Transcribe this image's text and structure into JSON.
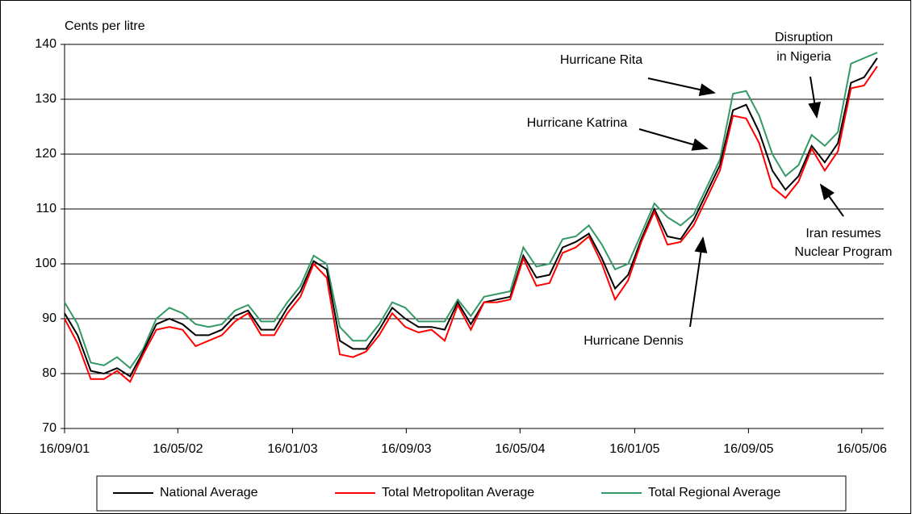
{
  "chart_data": {
    "type": "line",
    "y_label": "Cents per litre",
    "x": [
      "16/09/01",
      "14/10/01",
      "11/11/01",
      "09/12/01",
      "06/01/02",
      "03/02/02",
      "03/03/02",
      "31/03/02",
      "28/04/02",
      "26/05/02",
      "23/06/02",
      "21/07/02",
      "18/08/02",
      "15/09/02",
      "13/10/02",
      "10/11/02",
      "08/12/02",
      "05/01/03",
      "02/02/03",
      "02/03/03",
      "30/03/03",
      "27/04/03",
      "25/05/03",
      "22/06/03",
      "20/07/03",
      "17/08/03",
      "14/09/03",
      "12/10/03",
      "09/11/03",
      "07/12/03",
      "04/01/04",
      "01/02/04",
      "29/02/04",
      "28/03/04",
      "25/04/04",
      "23/05/04",
      "20/06/04",
      "18/07/04",
      "15/08/04",
      "12/09/04",
      "10/10/04",
      "07/11/04",
      "05/12/04",
      "02/01/05",
      "30/01/05",
      "27/02/05",
      "27/03/05",
      "24/04/05",
      "22/05/05",
      "19/06/05",
      "17/07/05",
      "14/08/05",
      "11/09/05",
      "09/10/05",
      "06/11/05",
      "04/12/05",
      "01/01/06",
      "29/01/06",
      "26/02/06",
      "26/03/06",
      "23/04/06",
      "21/05/06",
      "18/06/06"
    ],
    "series": [
      {
        "name": "National Average",
        "color": "#000000",
        "values": [
          91,
          87,
          80.5,
          80,
          81,
          79.5,
          84,
          89,
          90,
          89,
          87,
          87,
          88,
          90.5,
          91.5,
          88,
          88,
          92,
          95,
          100.5,
          99,
          86,
          84.5,
          84.5,
          88,
          92,
          90,
          88.5,
          88.5,
          88,
          93,
          89,
          93,
          93.5,
          94,
          101.5,
          97.5,
          98,
          103,
          104,
          105.5,
          101,
          95.5,
          98,
          104.5,
          110,
          105,
          104.5,
          108,
          113,
          118,
          128,
          129,
          124,
          117,
          113.5,
          116,
          121.5,
          118.5,
          122,
          133,
          134,
          137.5
        ]
      },
      {
        "name": "Total Metropolitan Average",
        "color": "#ff0000",
        "values": [
          90,
          85.5,
          79,
          79,
          80.5,
          78.5,
          83.5,
          88,
          88.5,
          88,
          85,
          86,
          87,
          89.5,
          91,
          87,
          87,
          91,
          94,
          100,
          97.5,
          83.5,
          83,
          84,
          87,
          91,
          88.5,
          87.5,
          88,
          86,
          92.5,
          88,
          93,
          93,
          93.5,
          101,
          96,
          96.5,
          102,
          103,
          105,
          100,
          93.5,
          97,
          104,
          109.5,
          103.5,
          104,
          107,
          112,
          117,
          127,
          126.5,
          122,
          114,
          112,
          115,
          121,
          117,
          120.5,
          132,
          132.5,
          136
        ]
      },
      {
        "name": "Total Regional Average",
        "color": "#339966",
        "values": [
          93,
          89,
          82,
          81.5,
          83,
          81,
          84.5,
          90,
          92,
          91,
          89,
          88.5,
          89,
          91.5,
          92.5,
          89.5,
          89.5,
          93,
          96,
          101.5,
          100,
          88.5,
          86,
          86,
          89,
          93,
          92,
          89.5,
          89.5,
          89.5,
          93.5,
          90.5,
          94,
          94.5,
          95,
          103,
          99.5,
          100,
          104.5,
          105,
          107,
          103.5,
          99,
          100,
          105.5,
          111,
          108.5,
          107,
          109,
          114,
          119,
          131,
          131.5,
          127,
          120,
          116,
          118,
          123.5,
          121.5,
          124,
          136.5,
          137.5,
          138.5
        ]
      }
    ],
    "xlim": [
      "16/09/01",
      "02/07/06"
    ],
    "xticks": [
      "16/09/01",
      "16/05/02",
      "16/01/03",
      "16/09/03",
      "16/05/04",
      "16/01/05",
      "16/09/05",
      "16/05/06"
    ],
    "ylim": [
      70,
      140
    ],
    "yticks": [
      70,
      80,
      90,
      100,
      110,
      120,
      130,
      140
    ],
    "grid": true,
    "annotations": [
      {
        "lines": [
          "Hurricane Rita"
        ]
      },
      {
        "lines": [
          "Hurricane Katrina"
        ]
      },
      {
        "lines": [
          "Disruption",
          "in Nigeria"
        ]
      },
      {
        "lines": [
          "Iran resumes",
          "Nuclear Program"
        ]
      },
      {
        "lines": [
          "Hurricane Dennis"
        ]
      }
    ]
  }
}
